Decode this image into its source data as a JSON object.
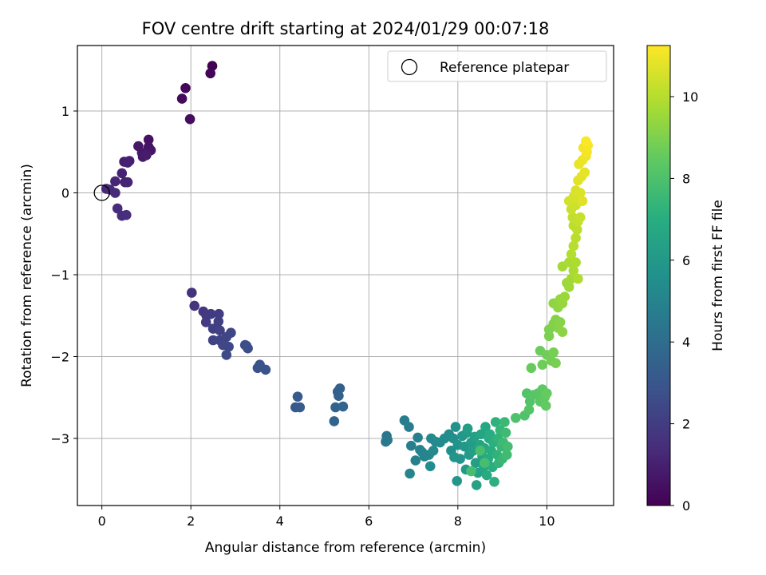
{
  "chart_data": {
    "type": "scatter",
    "title": "FOV centre drift starting at 2024/01/29 00:07:18",
    "xlabel": "Angular distance from reference (arcmin)",
    "ylabel": "Rotation from reference (arcmin)",
    "xlim": [
      -0.55,
      11.5
    ],
    "ylim": [
      -3.82,
      1.8
    ],
    "xticks": [
      0,
      2,
      4,
      6,
      8,
      10
    ],
    "xtick_labels": [
      "0",
      "2",
      "4",
      "6",
      "8",
      "10"
    ],
    "yticks": [
      -3,
      -2,
      -1,
      0,
      1
    ],
    "ytick_labels": [
      "−3",
      "−2",
      "−1",
      "0",
      "1"
    ],
    "grid": true,
    "legend": {
      "placement": "top-right",
      "entries": [
        {
          "label": "Reference platepar",
          "marker": "open-circle"
        }
      ]
    },
    "reference_point": {
      "x": 0,
      "y": 0
    },
    "colorbar": {
      "label": "Hours from first FF file",
      "range": [
        0,
        11.25
      ],
      "ticks": [
        0,
        2,
        4,
        6,
        8,
        10
      ],
      "tick_labels": [
        "0",
        "2",
        "4",
        "6",
        "8",
        "10"
      ],
      "colormap": "viridis"
    },
    "points": [
      [
        2.48,
        1.55,
        0.0
      ],
      [
        2.44,
        1.46,
        0.1
      ],
      [
        1.88,
        1.28,
        0.2
      ],
      [
        1.8,
        1.15,
        0.3
      ],
      [
        1.98,
        0.9,
        0.4
      ],
      [
        1.05,
        0.65,
        0.5
      ],
      [
        1.05,
        0.56,
        0.6
      ],
      [
        1.1,
        0.52,
        0.65
      ],
      [
        0.82,
        0.57,
        0.7
      ],
      [
        0.9,
        0.49,
        0.75
      ],
      [
        0.92,
        0.44,
        0.8
      ],
      [
        1.0,
        0.46,
        0.85
      ],
      [
        0.5,
        0.38,
        0.9
      ],
      [
        0.58,
        0.37,
        0.95
      ],
      [
        0.62,
        0.39,
        1.0
      ],
      [
        0.45,
        0.24,
        1.05
      ],
      [
        0.52,
        0.13,
        1.1
      ],
      [
        0.58,
        0.13,
        1.15
      ],
      [
        0.3,
        0.14,
        1.2
      ],
      [
        0.1,
        0.05,
        1.25
      ],
      [
        0.18,
        0.04,
        1.3
      ],
      [
        0.3,
        0.0,
        1.35
      ],
      [
        0.35,
        -0.19,
        1.4
      ],
      [
        0.45,
        -0.28,
        1.45
      ],
      [
        0.55,
        -0.27,
        1.5
      ],
      [
        2.02,
        -1.22,
        1.6
      ],
      [
        2.08,
        -1.38,
        1.7
      ],
      [
        2.28,
        -1.45,
        1.8
      ],
      [
        2.35,
        -1.5,
        1.85
      ],
      [
        2.34,
        -1.58,
        1.9
      ],
      [
        2.45,
        -1.48,
        1.95
      ],
      [
        2.63,
        -1.48,
        2.0
      ],
      [
        2.62,
        -1.57,
        2.05
      ],
      [
        2.5,
        -1.66,
        2.1
      ],
      [
        2.65,
        -1.68,
        2.15
      ],
      [
        2.5,
        -1.8,
        2.2
      ],
      [
        2.65,
        -1.8,
        2.25
      ],
      [
        2.8,
        -1.76,
        2.3
      ],
      [
        2.9,
        -1.71,
        2.35
      ],
      [
        2.72,
        -1.86,
        2.4
      ],
      [
        2.85,
        -1.88,
        2.45
      ],
      [
        2.8,
        -1.98,
        2.5
      ],
      [
        3.22,
        -1.86,
        2.6
      ],
      [
        3.28,
        -1.9,
        2.65
      ],
      [
        3.25,
        -1.87,
        2.7
      ],
      [
        3.5,
        -2.14,
        2.8
      ],
      [
        3.55,
        -2.1,
        2.85
      ],
      [
        3.68,
        -2.16,
        2.9
      ],
      [
        4.4,
        -2.49,
        3.1
      ],
      [
        4.35,
        -2.62,
        3.15
      ],
      [
        4.45,
        -2.62,
        3.2
      ],
      [
        5.3,
        -2.43,
        3.4
      ],
      [
        5.35,
        -2.39,
        3.45
      ],
      [
        5.32,
        -2.48,
        3.5
      ],
      [
        5.25,
        -2.62,
        3.55
      ],
      [
        5.42,
        -2.61,
        3.6
      ],
      [
        5.22,
        -2.79,
        3.65
      ],
      [
        6.4,
        -2.97,
        4.4
      ],
      [
        6.42,
        -3.02,
        4.45
      ],
      [
        6.38,
        -3.04,
        4.5
      ],
      [
        6.8,
        -2.78,
        4.7
      ],
      [
        6.9,
        -2.86,
        4.75
      ],
      [
        6.95,
        -3.09,
        4.8
      ],
      [
        7.1,
        -2.99,
        4.85
      ],
      [
        7.05,
        -3.27,
        4.9
      ],
      [
        7.15,
        -3.14,
        4.95
      ],
      [
        7.25,
        -3.22,
        5.0
      ],
      [
        7.2,
        -3.17,
        5.05
      ],
      [
        6.92,
        -3.43,
        5.1
      ],
      [
        7.35,
        -3.2,
        5.15
      ],
      [
        7.45,
        -3.15,
        5.2
      ],
      [
        7.4,
        -3.0,
        5.25
      ],
      [
        7.5,
        -3.04,
        5.3
      ],
      [
        7.6,
        -3.05,
        5.35
      ],
      [
        7.38,
        -3.34,
        5.4
      ],
      [
        7.7,
        -3.0,
        5.45
      ],
      [
        7.8,
        -2.95,
        5.5
      ],
      [
        7.9,
        -3.0,
        5.55
      ],
      [
        7.85,
        -3.15,
        5.6
      ],
      [
        7.95,
        -2.86,
        5.65
      ],
      [
        8.0,
        -3.08,
        5.7
      ],
      [
        8.05,
        -3.25,
        5.75
      ],
      [
        7.92,
        -3.23,
        5.8
      ],
      [
        7.98,
        -3.52,
        5.85
      ],
      [
        8.1,
        -2.97,
        5.9
      ],
      [
        8.15,
        -3.1,
        5.95
      ],
      [
        8.2,
        -2.93,
        6.0
      ],
      [
        8.18,
        -3.38,
        6.05
      ],
      [
        8.25,
        -3.2,
        6.1
      ],
      [
        8.3,
        -3.05,
        6.15
      ],
      [
        8.22,
        -2.88,
        6.2
      ],
      [
        8.35,
        -3.15,
        6.25
      ],
      [
        8.4,
        -3.3,
        6.3
      ],
      [
        8.38,
        -2.98,
        6.35
      ],
      [
        8.45,
        -3.42,
        6.4
      ],
      [
        8.42,
        -3.57,
        6.45
      ],
      [
        8.5,
        -3.08,
        6.5
      ],
      [
        8.52,
        -2.95,
        6.55
      ],
      [
        8.55,
        -3.22,
        6.6
      ],
      [
        8.58,
        -3.35,
        6.65
      ],
      [
        8.62,
        -2.86,
        6.7
      ],
      [
        8.6,
        -3.12,
        6.75
      ],
      [
        8.65,
        -3.45,
        6.8
      ],
      [
        8.7,
        -3.0,
        6.85
      ],
      [
        8.68,
        -3.25,
        6.9
      ],
      [
        8.72,
        -2.95,
        6.95
      ],
      [
        8.75,
        -3.15,
        7.0
      ],
      [
        8.78,
        -3.35,
        7.05
      ],
      [
        8.8,
        -3.05,
        7.1
      ],
      [
        8.82,
        -3.53,
        7.15
      ],
      [
        8.85,
        -2.8,
        7.2
      ],
      [
        8.88,
        -3.2,
        7.25
      ],
      [
        8.9,
        -3.0,
        7.3
      ],
      [
        8.92,
        -3.3,
        7.35
      ],
      [
        8.95,
        -2.9,
        7.4
      ],
      [
        8.98,
        -3.1,
        7.45
      ],
      [
        9.0,
        -3.25,
        7.5
      ],
      [
        9.05,
        -2.8,
        7.55
      ],
      [
        9.02,
        -3.05,
        7.6
      ],
      [
        9.08,
        -2.93,
        7.65
      ],
      [
        9.1,
        -3.2,
        7.7
      ],
      [
        9.12,
        -3.1,
        7.75
      ],
      [
        8.3,
        -3.4,
        7.8
      ],
      [
        8.6,
        -3.3,
        7.85
      ],
      [
        8.5,
        -3.15,
        7.9
      ],
      [
        9.3,
        -2.75,
        8.0
      ],
      [
        9.5,
        -2.72,
        8.05
      ],
      [
        9.55,
        -2.45,
        8.1
      ],
      [
        9.62,
        -2.55,
        8.15
      ],
      [
        9.6,
        -2.65,
        8.2
      ],
      [
        9.7,
        -2.47,
        8.25
      ],
      [
        9.8,
        -2.45,
        8.3
      ],
      [
        9.85,
        -2.55,
        8.35
      ],
      [
        9.9,
        -2.4,
        8.4
      ],
      [
        9.95,
        -2.5,
        8.45
      ],
      [
        9.98,
        -2.6,
        8.5
      ],
      [
        10.0,
        -2.45,
        8.55
      ],
      [
        9.65,
        -2.14,
        8.6
      ],
      [
        9.85,
        -1.93,
        8.65
      ],
      [
        9.9,
        -2.1,
        8.7
      ],
      [
        10.0,
        -1.98,
        8.75
      ],
      [
        10.1,
        -2.05,
        8.8
      ],
      [
        10.15,
        -1.95,
        8.85
      ],
      [
        10.2,
        -2.08,
        8.9
      ],
      [
        10.05,
        -1.75,
        8.95
      ],
      [
        10.05,
        -1.67,
        9.0
      ],
      [
        10.15,
        -1.6,
        9.05
      ],
      [
        10.2,
        -1.55,
        9.1
      ],
      [
        10.25,
        -1.65,
        9.15
      ],
      [
        10.3,
        -1.58,
        9.2
      ],
      [
        10.35,
        -1.7,
        9.25
      ],
      [
        10.15,
        -1.35,
        9.3
      ],
      [
        10.25,
        -1.4,
        9.35
      ],
      [
        10.3,
        -1.3,
        9.4
      ],
      [
        10.35,
        -1.35,
        9.45
      ],
      [
        10.4,
        -1.27,
        9.5
      ],
      [
        10.45,
        -1.1,
        9.55
      ],
      [
        10.5,
        -1.15,
        9.6
      ],
      [
        10.55,
        -1.05,
        9.65
      ],
      [
        10.35,
        -0.9,
        9.7
      ],
      [
        10.5,
        -0.85,
        9.75
      ],
      [
        10.6,
        -0.95,
        9.8
      ],
      [
        10.65,
        -0.85,
        9.85
      ],
      [
        10.7,
        -1.05,
        9.9
      ],
      [
        10.55,
        -0.75,
        9.95
      ],
      [
        10.6,
        -0.65,
        10.0
      ],
      [
        10.65,
        -0.55,
        10.05
      ],
      [
        10.68,
        -0.45,
        10.1
      ],
      [
        10.6,
        -0.4,
        10.15
      ],
      [
        10.58,
        -0.3,
        10.2
      ],
      [
        10.7,
        -0.35,
        10.25
      ],
      [
        10.75,
        -0.3,
        10.3
      ],
      [
        10.55,
        -0.2,
        10.35
      ],
      [
        10.65,
        -0.15,
        10.4
      ],
      [
        10.7,
        -0.1,
        10.45
      ],
      [
        10.5,
        -0.1,
        10.5
      ],
      [
        10.6,
        -0.05,
        10.55
      ],
      [
        10.65,
        0.03,
        10.6
      ],
      [
        10.75,
        0.0,
        10.65
      ],
      [
        10.8,
        -0.1,
        10.7
      ],
      [
        10.7,
        0.15,
        10.75
      ],
      [
        10.78,
        0.2,
        10.8
      ],
      [
        10.85,
        0.25,
        10.85
      ],
      [
        10.72,
        0.35,
        10.9
      ],
      [
        10.8,
        0.4,
        10.95
      ],
      [
        10.88,
        0.45,
        11.0
      ],
      [
        10.82,
        0.55,
        11.05
      ],
      [
        10.9,
        0.5,
        11.1
      ],
      [
        10.92,
        0.58,
        11.15
      ],
      [
        10.88,
        0.63,
        11.2
      ]
    ]
  }
}
